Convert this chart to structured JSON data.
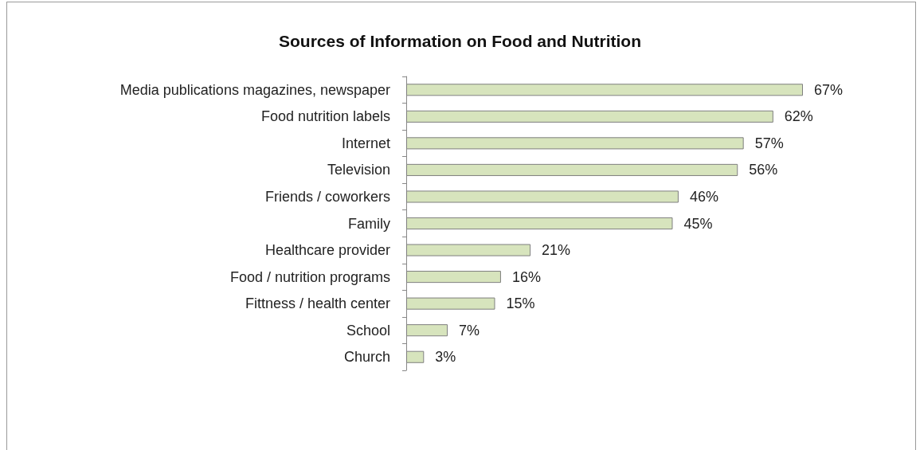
{
  "chart_data": {
    "type": "bar",
    "orientation": "horizontal",
    "title": "Sources of Information on Food and Nutrition",
    "categories": [
      "Media publications magazines, newspaper",
      "Food nutrition labels",
      "Internet",
      "Television",
      "Friends / coworkers",
      "Family",
      "Healthcare provider",
      "Food / nutrition programs",
      "Fittness / health center",
      "School",
      "Church"
    ],
    "values": [
      67,
      62,
      57,
      56,
      46,
      45,
      21,
      16,
      15,
      7,
      3
    ],
    "value_labels": [
      "67%",
      "62%",
      "57%",
      "56%",
      "46%",
      "45%",
      "21%",
      "16%",
      "15%",
      "7%",
      "3%"
    ],
    "color": "#d7e4bd"
  }
}
